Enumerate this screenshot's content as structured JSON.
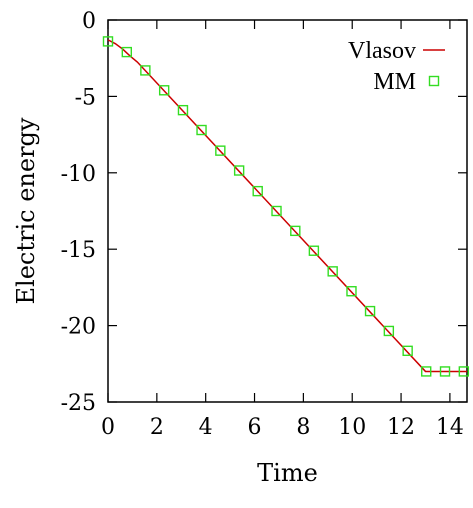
{
  "chart_data": {
    "type": "line",
    "xlabel": "Time",
    "ylabel": "Electric energy",
    "xlim": [
      0,
      14.7
    ],
    "ylim": [
      -25,
      0
    ],
    "xticks": [
      0,
      2,
      4,
      6,
      8,
      10,
      12,
      14
    ],
    "yticks": [
      0,
      -5,
      -10,
      -15,
      -20,
      -25
    ],
    "x_tick_labels": [
      "0",
      "2",
      "4",
      "6",
      "8",
      "10",
      "12",
      "14"
    ],
    "y_tick_labels": [
      "0",
      "-5",
      "-10",
      "-15",
      "-20",
      "-25"
    ],
    "legend_position": "top-right",
    "series": [
      {
        "name": "Vlasov",
        "style": "line",
        "color": "#cc0000",
        "x": [
          0,
          0.3,
          0.6,
          0.9,
          1.2,
          13.0,
          14.7
        ],
        "y": [
          -1.3,
          -1.55,
          -1.9,
          -2.35,
          -2.75,
          -23.0,
          -23.0
        ]
      },
      {
        "name": "MM",
        "style": "markers",
        "marker": "open-square",
        "color": "#33dd22",
        "x": [
          0,
          0.77,
          1.53,
          2.3,
          3.07,
          3.83,
          4.6,
          5.37,
          6.13,
          6.9,
          7.67,
          8.43,
          9.2,
          9.97,
          10.73,
          11.5,
          12.27,
          13.03,
          13.8,
          14.57
        ],
        "y": [
          -1.4,
          -2.1,
          -3.3,
          -4.6,
          -5.9,
          -7.2,
          -8.55,
          -9.85,
          -11.2,
          -12.5,
          -13.8,
          -15.1,
          -16.45,
          -17.75,
          -19.05,
          -20.35,
          -21.65,
          -23.0,
          -23.0,
          -23.0
        ]
      }
    ]
  }
}
